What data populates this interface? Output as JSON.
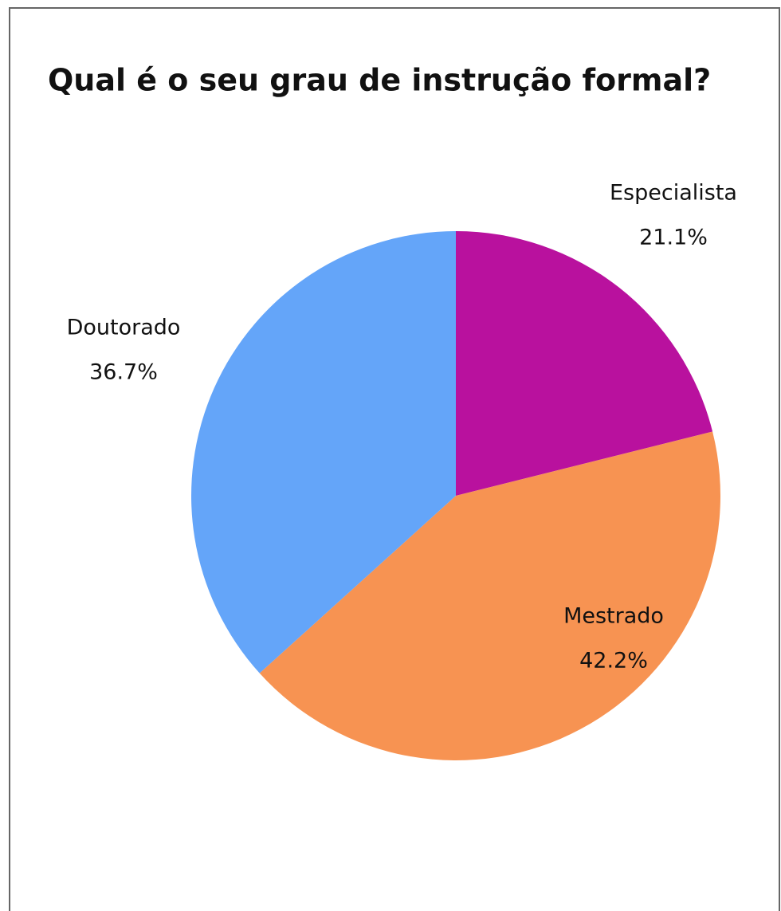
{
  "chart_data": {
    "type": "pie",
    "title": "Qual é o seu grau de instrução formal?",
    "categories": [
      "Especialista",
      "Mestrado",
      "Doutorado"
    ],
    "values": [
      21.1,
      42.2,
      36.7
    ],
    "value_labels": [
      "21.1%",
      "42.2%",
      "36.7%"
    ],
    "colors": [
      "#b9119e",
      "#f79352",
      "#64a5f9"
    ]
  }
}
